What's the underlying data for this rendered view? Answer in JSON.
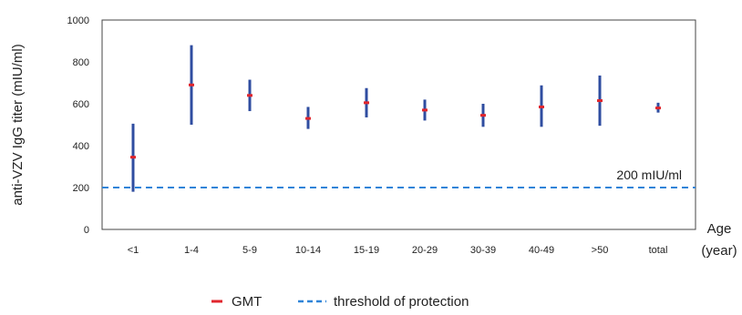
{
  "chart_data": {
    "type": "error-bar",
    "ylabel": "anti-VZV IgG titer (mIU/ml)",
    "xlabel_line1": "Age",
    "xlabel_line2": "(year)",
    "ylim": [
      0,
      1000
    ],
    "yticks": [
      "0",
      "200",
      "400",
      "600",
      "800",
      "1000"
    ],
    "categories": [
      "<1",
      "1-4",
      "5-9",
      "10-14",
      "15-19",
      "20-29",
      "30-39",
      "40-49",
      ">50",
      "total"
    ],
    "series": [
      {
        "name": "GMT",
        "values": [
          345,
          690,
          640,
          530,
          605,
          570,
          545,
          585,
          615,
          580
        ],
        "low": [
          180,
          500,
          565,
          480,
          535,
          520,
          490,
          490,
          495,
          558
        ],
        "high": [
          505,
          880,
          715,
          585,
          675,
          620,
          600,
          688,
          735,
          605
        ]
      }
    ],
    "reference_line": {
      "name": "threshold of protection",
      "value": 200,
      "label": "200 mIU/ml"
    },
    "grid": false,
    "legend_position": "bottom",
    "colors": {
      "bar": "#2f4da0",
      "gmt": "#e0262d",
      "threshold": "#2f84d8"
    }
  }
}
